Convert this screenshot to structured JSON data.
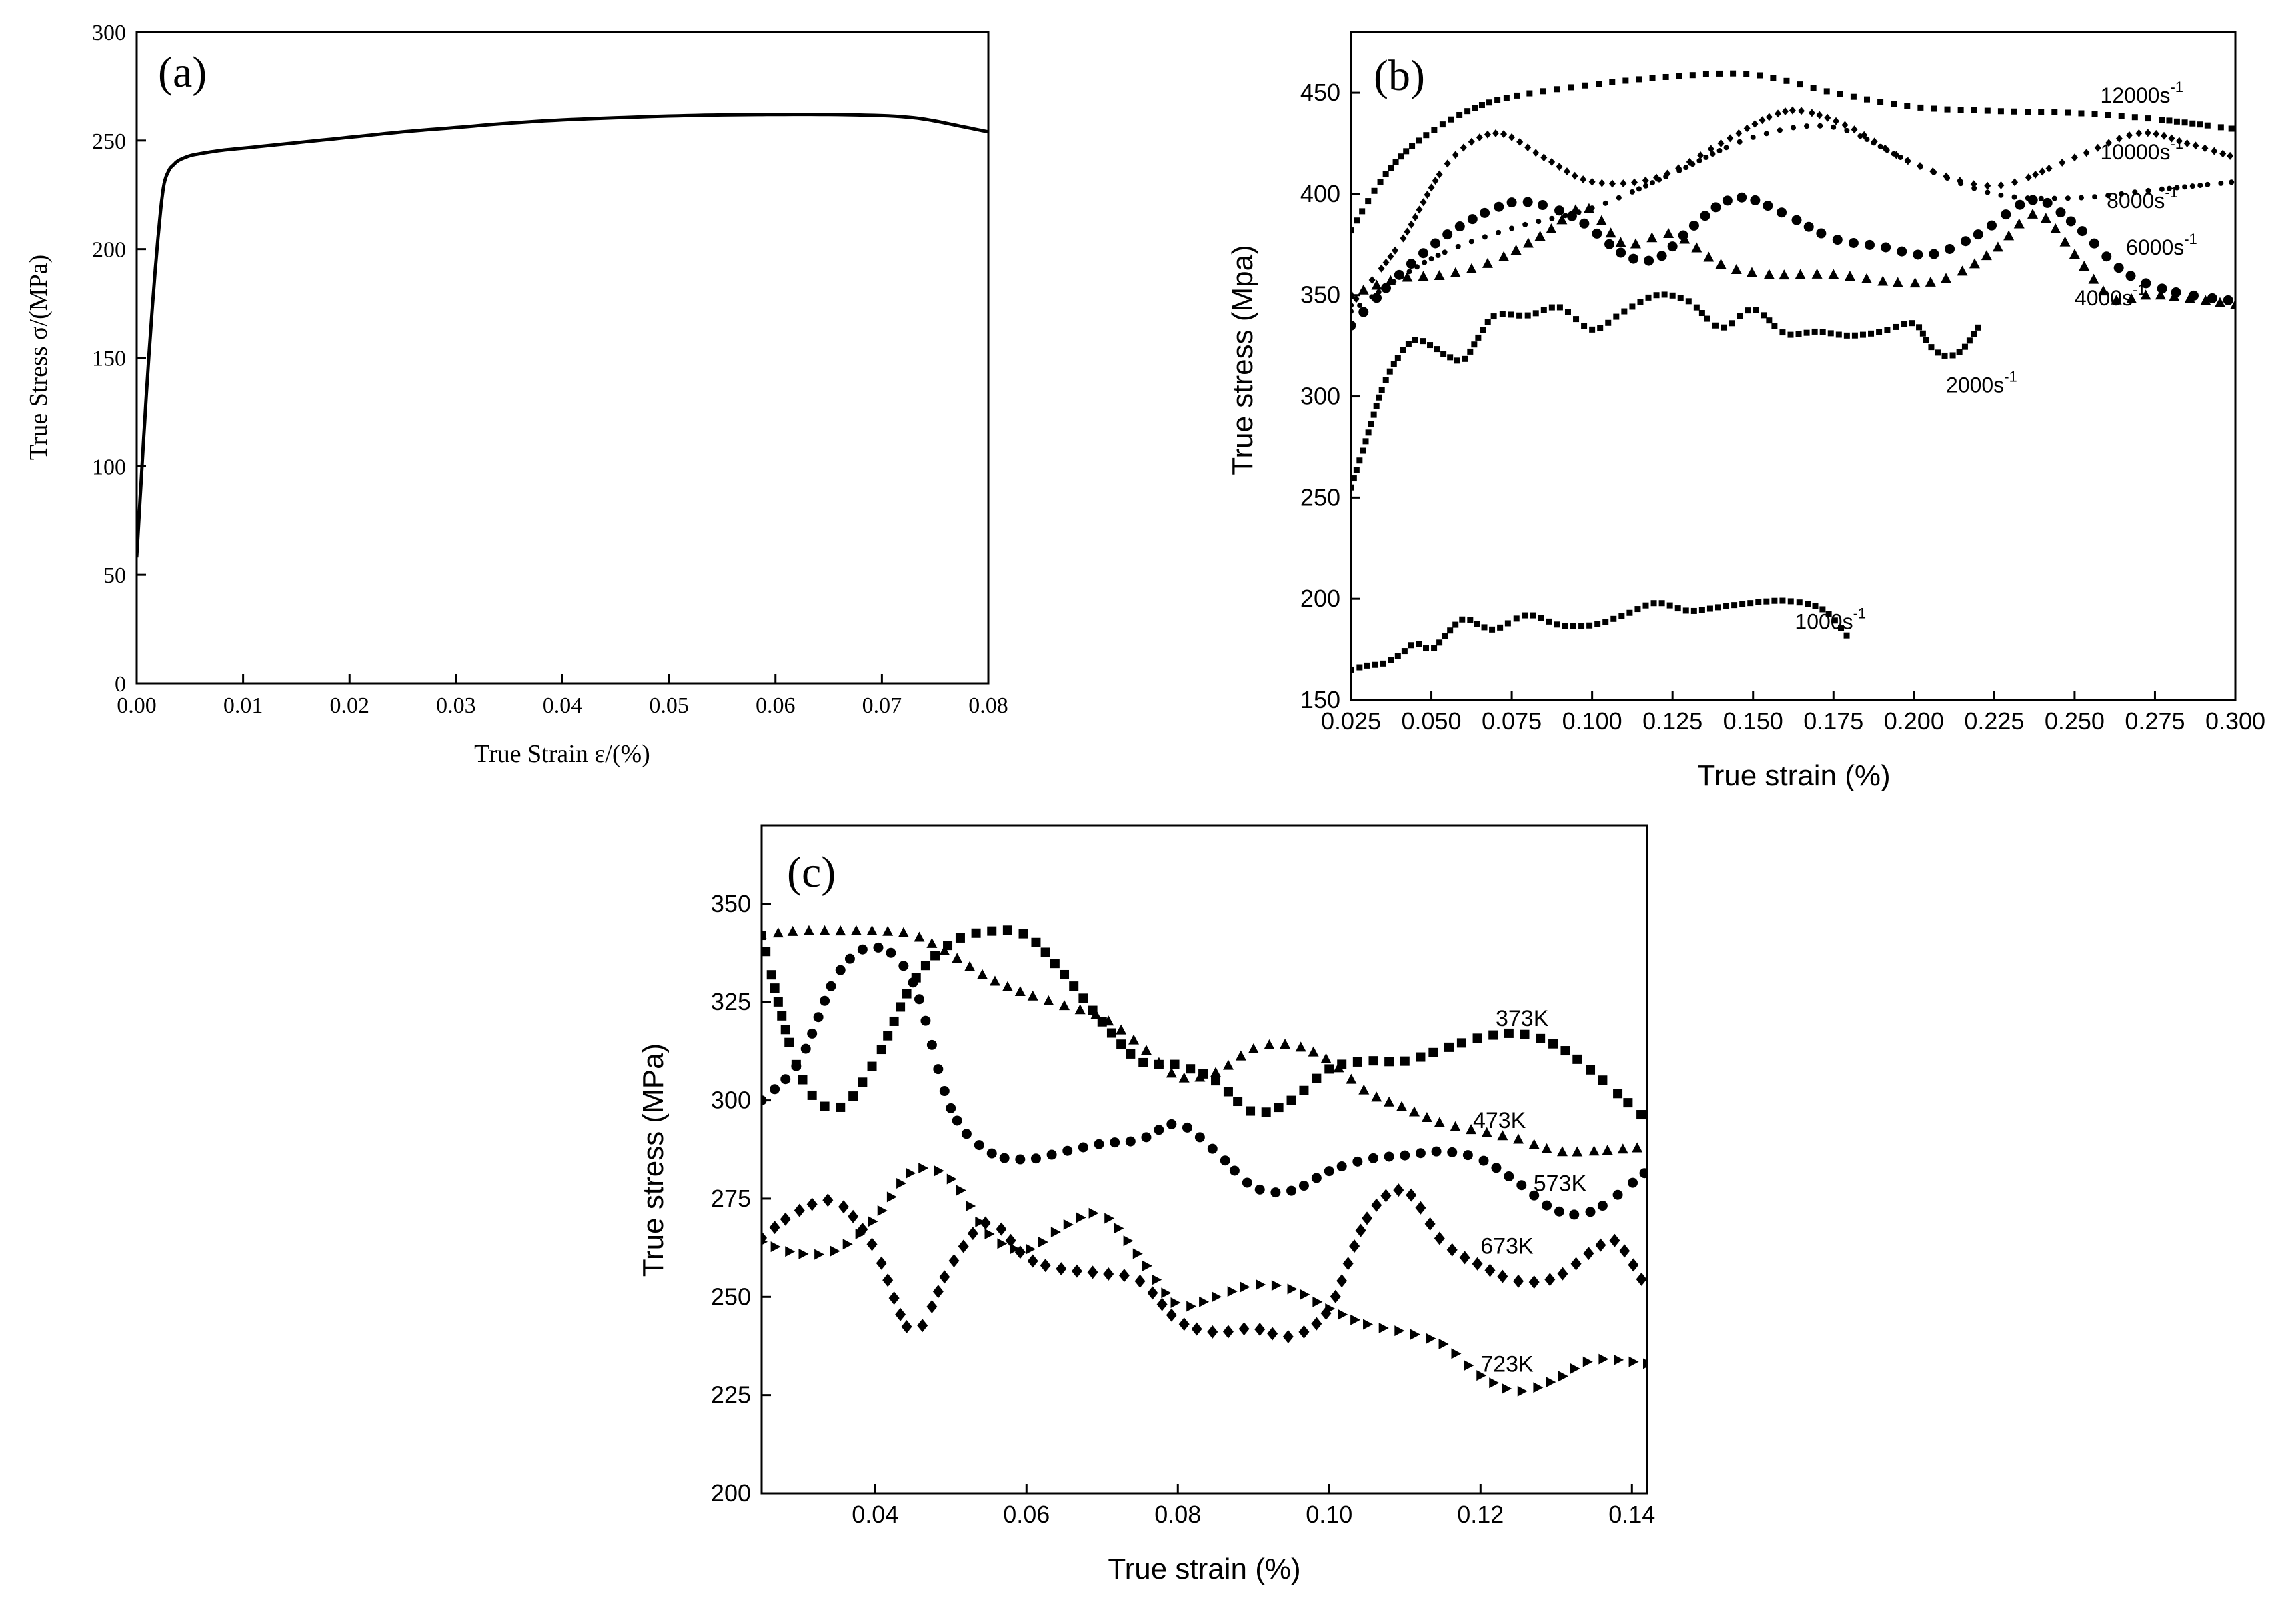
{
  "chart_data": [
    {
      "id": "a",
      "type": "line",
      "panel_label": "(a)",
      "xlabel": "True Strain ε/(%)",
      "ylabel": "True Stress σ/(MPa)",
      "xlim": [
        0,
        0.08
      ],
      "ylim": [
        0,
        300
      ],
      "xticks": [
        0.0,
        0.01,
        0.02,
        0.03,
        0.04,
        0.05,
        0.06,
        0.07,
        0.08
      ],
      "xtick_labels": [
        "0.00",
        "0.01",
        "0.02",
        "0.03",
        "0.04",
        "0.05",
        "0.06",
        "0.07",
        "0.08"
      ],
      "yticks": [
        0,
        50,
        100,
        150,
        200,
        250,
        300
      ],
      "ytick_labels": [
        "0",
        "50",
        "100",
        "150",
        "200",
        "250",
        "300"
      ],
      "series": [
        {
          "name": "curve",
          "marker": "line",
          "x": [
            0,
            0.0005,
            0.001,
            0.0015,
            0.002,
            0.0025,
            0.003,
            0.0035,
            0.004,
            0.005,
            0.006,
            0.008,
            0.01,
            0.015,
            0.02,
            0.025,
            0.03,
            0.035,
            0.04,
            0.045,
            0.05,
            0.055,
            0.06,
            0.065,
            0.07,
            0.073,
            0.075,
            0.077,
            0.079,
            0.08
          ],
          "y": [
            58,
            100,
            140,
            175,
            205,
            228,
            236,
            239,
            241,
            243,
            244,
            245.5,
            246.5,
            249,
            251.5,
            254,
            256,
            258,
            259.5,
            260.5,
            261.3,
            261.8,
            262,
            262,
            261.5,
            260.5,
            259,
            257,
            255,
            254
          ]
        }
      ]
    },
    {
      "id": "b",
      "type": "scatter",
      "panel_label": "(b)",
      "xlabel": "True strain (%)",
      "ylabel": "True stress (Mpa)",
      "xlim": [
        0.025,
        0.3
      ],
      "ylim": [
        150,
        480
      ],
      "xticks": [
        0.025,
        0.05,
        0.075,
        0.1,
        0.125,
        0.15,
        0.175,
        0.2,
        0.225,
        0.25,
        0.275,
        0.3
      ],
      "xtick_labels": [
        "0.025",
        "0.050",
        "0.075",
        "0.100",
        "0.125",
        "0.150",
        "0.175",
        "0.200",
        "0.225",
        "0.250",
        "0.275",
        "0.300"
      ],
      "yticks": [
        150,
        200,
        250,
        300,
        350,
        400,
        450
      ],
      "ytick_labels": [
        "150",
        "200",
        "250",
        "300",
        "350",
        "400",
        "450"
      ],
      "series": [
        {
          "name": "12000s⁻¹",
          "label_base": "12000s",
          "label_sup": "-1",
          "marker": "square-small",
          "x": [
            0.025,
            0.035,
            0.045,
            0.06,
            0.075,
            0.1,
            0.125,
            0.15,
            0.175,
            0.2,
            0.225,
            0.25,
            0.275,
            0.3
          ],
          "y": [
            382,
            408,
            425,
            440,
            448,
            454,
            458,
            459,
            450,
            443,
            441,
            440,
            437,
            432
          ]
        },
        {
          "name": "10000s⁻¹",
          "label_base": "10000s",
          "label_sup": "-1",
          "marker": "diamond-small",
          "x": [
            0.025,
            0.04,
            0.055,
            0.07,
            0.085,
            0.1,
            0.12,
            0.14,
            0.155,
            0.165,
            0.18,
            0.2,
            0.225,
            0.25,
            0.27,
            0.285,
            0.3
          ],
          "y": [
            345,
            375,
            415,
            430,
            418,
            406,
            408,
            425,
            438,
            441,
            433,
            415,
            404,
            418,
            430,
            425,
            418
          ]
        },
        {
          "name": "8000s⁻¹",
          "label_base": "8000s",
          "label_sup": "-1",
          "marker": "dot-small",
          "x": [
            0.025,
            0.05,
            0.075,
            0.1,
            0.125,
            0.15,
            0.175,
            0.2,
            0.225,
            0.25,
            0.275,
            0.3
          ],
          "y": [
            342,
            368,
            383,
            393,
            410,
            428,
            433,
            415,
            400,
            398,
            402,
            406
          ]
        },
        {
          "name": "6000s⁻¹",
          "label_base": "6000s",
          "label_sup": "-1",
          "marker": "circle",
          "x": [
            0.025,
            0.04,
            0.055,
            0.07,
            0.08,
            0.095,
            0.11,
            0.12,
            0.13,
            0.14,
            0.148,
            0.16,
            0.175,
            0.19,
            0.205,
            0.22,
            0.237,
            0.25,
            0.265,
            0.28,
            0.3
          ],
          "y": [
            335,
            360,
            380,
            393,
            396,
            388,
            370,
            368,
            382,
            395,
            398,
            390,
            378,
            374,
            370,
            380,
            397,
            385,
            362,
            352,
            347
          ]
        },
        {
          "name": "4000s⁻¹",
          "label_base": "4000s",
          "label_sup": "-1",
          "marker": "triangle",
          "x": [
            0.025,
            0.04,
            0.055,
            0.07,
            0.085,
            0.098,
            0.11,
            0.125,
            0.14,
            0.155,
            0.175,
            0.195,
            0.21,
            0.225,
            0.238,
            0.25,
            0.262,
            0.275,
            0.3
          ],
          "y": [
            350,
            358,
            360,
            367,
            380,
            393,
            375,
            380,
            365,
            360,
            360,
            356,
            358,
            372,
            390,
            370,
            348,
            350,
            345
          ]
        },
        {
          "name": "2000s⁻¹",
          "label_base": "2000s",
          "label_sup": "-1",
          "marker": "square-small",
          "x": [
            0.025,
            0.03,
            0.035,
            0.04,
            0.045,
            0.05,
            0.055,
            0.06,
            0.065,
            0.07,
            0.08,
            0.09,
            0.1,
            0.11,
            0.12,
            0.13,
            0.14,
            0.15,
            0.16,
            0.17,
            0.18,
            0.19,
            0.2,
            0.205,
            0.21,
            0.215,
            0.22
          ],
          "y": [
            255,
            280,
            305,
            320,
            328,
            325,
            320,
            318,
            330,
            340,
            340,
            344,
            333,
            342,
            350,
            347,
            334,
            343,
            331,
            332,
            330,
            332,
            336,
            325,
            320,
            323,
            334
          ]
        },
        {
          "name": "1000s⁻¹",
          "label_base": "1000s",
          "label_sup": "-1",
          "marker": "square-small",
          "x": [
            0.025,
            0.03,
            0.035,
            0.04,
            0.045,
            0.05,
            0.055,
            0.06,
            0.065,
            0.07,
            0.08,
            0.09,
            0.1,
            0.11,
            0.12,
            0.13,
            0.14,
            0.15,
            0.16,
            0.17,
            0.175,
            0.18
          ],
          "y": [
            165,
            167,
            168,
            172,
            178,
            175,
            183,
            190,
            187,
            185,
            192,
            187,
            187,
            192,
            198,
            194,
            196,
            198,
            199,
            196,
            190,
            180
          ]
        }
      ]
    },
    {
      "id": "c",
      "type": "scatter",
      "panel_label": "(c)",
      "xlabel": "True strain (%)",
      "ylabel": "True stress (MPa)",
      "xlim": [
        0.025,
        0.142
      ],
      "ylim": [
        200,
        370
      ],
      "xticks": [
        0.04,
        0.06,
        0.08,
        0.1,
        0.12,
        0.14
      ],
      "xtick_labels": [
        "0.04",
        "0.06",
        "0.08",
        "0.10",
        "0.12",
        "0.14"
      ],
      "yticks": [
        200,
        225,
        250,
        275,
        300,
        325,
        350
      ],
      "ytick_labels": [
        "200",
        "225",
        "250",
        "275",
        "300",
        "325",
        "350"
      ],
      "series": [
        {
          "name": "373K",
          "marker": "square",
          "x": [
            0.025,
            0.03,
            0.035,
            0.04,
            0.045,
            0.05,
            0.055,
            0.06,
            0.065,
            0.07,
            0.075,
            0.08,
            0.085,
            0.09,
            0.095,
            0.1,
            0.105,
            0.11,
            0.115,
            0.12,
            0.125,
            0.13,
            0.135,
            0.142
          ],
          "y": [
            342,
            307,
            298,
            310,
            330,
            340,
            343,
            342,
            332,
            320,
            310,
            309,
            305,
            297,
            300,
            308,
            310,
            310,
            313,
            316,
            317,
            314,
            307,
            295
          ]
        },
        {
          "name": "473K",
          "marker": "triangle",
          "x": [
            0.025,
            0.03,
            0.035,
            0.04,
            0.045,
            0.05,
            0.055,
            0.06,
            0.065,
            0.07,
            0.075,
            0.08,
            0.085,
            0.09,
            0.095,
            0.1,
            0.105,
            0.11,
            0.115,
            0.12,
            0.125,
            0.13,
            0.135,
            0.142
          ],
          "y": [
            342,
            343,
            343,
            343,
            342,
            337,
            331,
            327,
            324,
            321,
            314,
            306,
            307,
            313,
            314,
            310,
            302,
            298,
            294,
            292,
            290,
            287,
            287,
            288
          ]
        },
        {
          "name": "573K",
          "marker": "circle",
          "x": [
            0.025,
            0.03,
            0.035,
            0.04,
            0.045,
            0.05,
            0.055,
            0.06,
            0.065,
            0.07,
            0.075,
            0.08,
            0.085,
            0.09,
            0.095,
            0.1,
            0.105,
            0.11,
            0.115,
            0.12,
            0.125,
            0.13,
            0.135,
            0.142
          ],
          "y": [
            300,
            310,
            332,
            339,
            330,
            298,
            287,
            285,
            287,
            289,
            290,
            294,
            287,
            278,
            277,
            282,
            285,
            286,
            287,
            285,
            279,
            272,
            272,
            282
          ]
        },
        {
          "name": "673K",
          "marker": "diamond",
          "x": [
            0.025,
            0.03,
            0.035,
            0.04,
            0.045,
            0.05,
            0.055,
            0.06,
            0.065,
            0.07,
            0.075,
            0.08,
            0.085,
            0.09,
            0.095,
            0.1,
            0.105,
            0.11,
            0.115,
            0.12,
            0.125,
            0.13,
            0.135,
            0.138,
            0.142
          ],
          "y": [
            265,
            272,
            274,
            262,
            241,
            258,
            269,
            260,
            257,
            256,
            254,
            244,
            241,
            242,
            240,
            247,
            270,
            277,
            264,
            258,
            254,
            255,
            262,
            264,
            252
          ]
        },
        {
          "name": "723K",
          "marker": "triangle-right",
          "x": [
            0.025,
            0.03,
            0.035,
            0.04,
            0.045,
            0.05,
            0.055,
            0.06,
            0.065,
            0.07,
            0.075,
            0.08,
            0.085,
            0.09,
            0.095,
            0.1,
            0.105,
            0.11,
            0.115,
            0.12,
            0.125,
            0.13,
            0.135,
            0.142
          ],
          "y": [
            264,
            261,
            262,
            270,
            282,
            280,
            266,
            262,
            268,
            271,
            260,
            248,
            250,
            253,
            252,
            247,
            243,
            241,
            238,
            230,
            226,
            229,
            234,
            233
          ]
        }
      ]
    }
  ]
}
